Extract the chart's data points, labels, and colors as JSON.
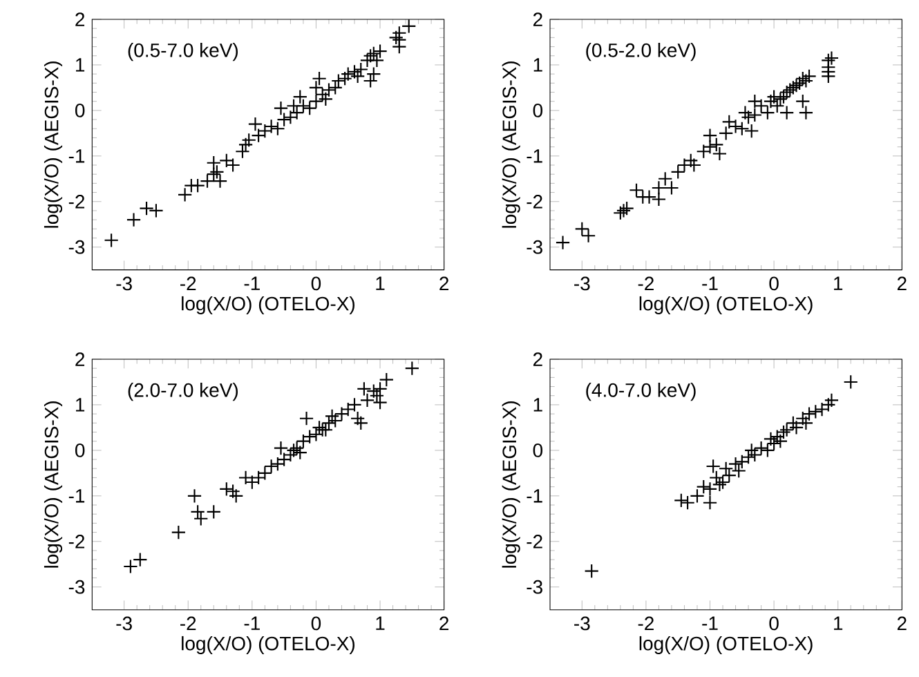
{
  "chart_data": [
    {
      "type": "scatter",
      "xlabel": "log(X/O) (OTELO-X)",
      "ylabel": "log(X/O) (AEGIS-X)",
      "annotations": [
        "(0.5-7.0 keV)"
      ],
      "color": "#000000",
      "marker": "cross",
      "xlim": [
        -3.5,
        2
      ],
      "ylim": [
        -3.5,
        2
      ],
      "xticks": [
        -3,
        -2,
        -1,
        0,
        1,
        2
      ],
      "yticks": [
        -3,
        -2,
        -1,
        0,
        1,
        2
      ],
      "x": [
        -3.2,
        -2.85,
        -2.65,
        -2.5,
        -2.05,
        -1.95,
        -1.85,
        -1.7,
        -1.6,
        -1.55,
        -1.5,
        -1.6,
        -1.4,
        -1.3,
        -1.15,
        -1.1,
        -1.05,
        -0.9,
        -0.95,
        -0.8,
        -0.7,
        -0.6,
        -0.55,
        -0.5,
        -0.4,
        -0.3,
        -0.25,
        -0.2,
        -0.1,
        0,
        0,
        0.05,
        0.1,
        0.2,
        0.3,
        0.35,
        0.45,
        0.5,
        0.6,
        0.7,
        0.65,
        0.8,
        0.85,
        0.9,
        0.95,
        0.85,
        0.9,
        1.0,
        1.25,
        1.3,
        1.3,
        1.45,
        1.3,
        -0.35,
        0.15
      ],
      "values": [
        -2.85,
        -2.4,
        -2.15,
        -2.2,
        -1.85,
        -1.65,
        -1.65,
        -1.55,
        -1.4,
        -1.35,
        -1.55,
        -1.15,
        -1.1,
        -1.2,
        -0.9,
        -0.75,
        -0.65,
        -0.55,
        -0.3,
        -0.45,
        -0.35,
        -0.4,
        0.05,
        -0.2,
        -0.15,
        -0.05,
        0.3,
        0.1,
        0.05,
        0.2,
        0.5,
        0.7,
        0.35,
        0.45,
        0.5,
        0.65,
        0.7,
        0.8,
        0.85,
        0.9,
        0.75,
        1.1,
        1.2,
        1.25,
        1.1,
        0.65,
        0.8,
        1.3,
        1.6,
        1.4,
        1.7,
        1.85,
        1.55,
        0.1,
        0.25
      ]
    },
    {
      "type": "scatter",
      "xlabel": "log(X/O) (OTELO-X)",
      "ylabel": "log(X/O) (AEGIS-X)",
      "annotations": [
        "(0.5-2.0 keV)"
      ],
      "color": "#000000",
      "marker": "cross",
      "xlim": [
        -3.5,
        2
      ],
      "ylim": [
        -3.5,
        2
      ],
      "xticks": [
        -3,
        -2,
        -1,
        0,
        1,
        2
      ],
      "yticks": [
        -3,
        -2,
        -1,
        0,
        1,
        2
      ],
      "x": [
        -3.3,
        -3.0,
        -2.9,
        -2.4,
        -2.35,
        -2.3,
        -2.15,
        -2.05,
        -1.95,
        -1.8,
        -1.8,
        -1.7,
        -1.6,
        -1.5,
        -1.4,
        -1.3,
        -1.25,
        -1.1,
        -1.0,
        -1.0,
        -0.9,
        -0.85,
        -0.75,
        -0.7,
        -0.6,
        -0.5,
        -0.45,
        -0.4,
        -0.35,
        -0.3,
        -0.2,
        -0.1,
        -0.05,
        0,
        0.05,
        0.1,
        0.15,
        0.2,
        0.25,
        0.3,
        0.35,
        0.4,
        0.45,
        0.5,
        0.55,
        0.2,
        0.45,
        0.5,
        0.85,
        0.85,
        0.85,
        0.9,
        0.85,
        -0.3
      ],
      "values": [
        -2.9,
        -2.6,
        -2.75,
        -2.25,
        -2.2,
        -2.15,
        -1.75,
        -1.9,
        -1.9,
        -1.7,
        -1.95,
        -1.5,
        -1.7,
        -1.35,
        -1.2,
        -1.1,
        -1.2,
        -0.9,
        -0.55,
        -0.8,
        -0.75,
        -0.95,
        -0.5,
        -0.25,
        -0.35,
        -0.4,
        -0.05,
        -0.15,
        -0.45,
        -0.1,
        0.1,
        -0.05,
        0.2,
        0.3,
        0.1,
        0.25,
        0.3,
        0.4,
        0.45,
        0.5,
        0.55,
        0.6,
        0.7,
        0.65,
        0.75,
        -0.05,
        0.2,
        -0.05,
        1.1,
        0.95,
        0.75,
        1.15,
        0.85,
        0.2
      ]
    },
    {
      "type": "scatter",
      "xlabel": "log(X/O) (OTELO-X)",
      "ylabel": "log(X/O) (AEGIS-X)",
      "annotations": [
        "(2.0-7.0 keV)"
      ],
      "color": "#000000",
      "marker": "cross",
      "xlim": [
        -3.5,
        2
      ],
      "ylim": [
        -3.5,
        2
      ],
      "xticks": [
        -3,
        -2,
        -1,
        0,
        1,
        2
      ],
      "yticks": [
        -3,
        -2,
        -1,
        0,
        1,
        2
      ],
      "x": [
        -2.9,
        -2.75,
        -2.15,
        -1.9,
        -1.85,
        -1.8,
        -1.6,
        -1.4,
        -1.3,
        -1.25,
        -1.1,
        -1.0,
        -0.9,
        -0.8,
        -0.7,
        -0.6,
        -0.55,
        -0.5,
        -0.4,
        -0.3,
        -0.25,
        -0.2,
        -0.15,
        -0.1,
        0,
        0.05,
        0.1,
        0.2,
        0.25,
        0.3,
        0.4,
        0.5,
        0.6,
        0.65,
        0.7,
        0.75,
        0.8,
        0.9,
        0.95,
        1.0,
        1.0,
        1.1,
        1.5,
        -0.35,
        0.15
      ],
      "values": [
        -2.55,
        -2.4,
        -1.8,
        -1.0,
        -1.35,
        -1.5,
        -1.35,
        -0.85,
        -0.9,
        -1.0,
        -0.6,
        -0.7,
        -0.6,
        -0.5,
        -0.35,
        -0.3,
        0.05,
        -0.2,
        -0.1,
        0.05,
        -0.05,
        0.2,
        0.7,
        0.3,
        0.35,
        0.5,
        0.45,
        0.6,
        0.75,
        0.65,
        0.8,
        0.9,
        1.0,
        0.7,
        0.6,
        1.35,
        1.1,
        1.3,
        1.2,
        1.35,
        1.05,
        1.55,
        1.8,
        0.0,
        0.45
      ]
    },
    {
      "type": "scatter",
      "xlabel": "log(X/O) (OTELO-X)",
      "ylabel": "log(X/O) (AEGIS-X)",
      "annotations": [
        "(4.0-7.0 keV)"
      ],
      "color": "#000000",
      "marker": "cross",
      "xlim": [
        -3.5,
        2
      ],
      "ylim": [
        -3.5,
        2
      ],
      "xticks": [
        -3,
        -2,
        -1,
        0,
        1,
        2
      ],
      "yticks": [
        -3,
        -2,
        -1,
        0,
        1,
        2
      ],
      "x": [
        -2.85,
        -1.45,
        -1.35,
        -1.2,
        -1.1,
        -1.0,
        -1.0,
        -0.95,
        -0.9,
        -0.85,
        -0.8,
        -0.75,
        -0.7,
        -0.6,
        -0.55,
        -0.5,
        -0.4,
        -0.35,
        -0.3,
        -0.2,
        -0.1,
        -0.05,
        0,
        0.05,
        0.1,
        0.15,
        0.2,
        0.3,
        0.35,
        0.45,
        0.5,
        0.55,
        0.65,
        0.75,
        0.85,
        0.9,
        1.2
      ],
      "values": [
        -2.65,
        -1.1,
        -1.15,
        -1.0,
        -0.8,
        -1.15,
        -0.85,
        -0.35,
        -0.6,
        -0.75,
        -0.7,
        -0.4,
        -0.55,
        -0.3,
        -0.45,
        -0.25,
        -0.15,
        0.0,
        -0.1,
        0.05,
        0.0,
        0.25,
        0.15,
        0.3,
        0.2,
        0.4,
        0.45,
        0.6,
        0.5,
        0.7,
        0.6,
        0.8,
        0.85,
        0.9,
        1.0,
        1.1,
        1.5
      ]
    }
  ]
}
